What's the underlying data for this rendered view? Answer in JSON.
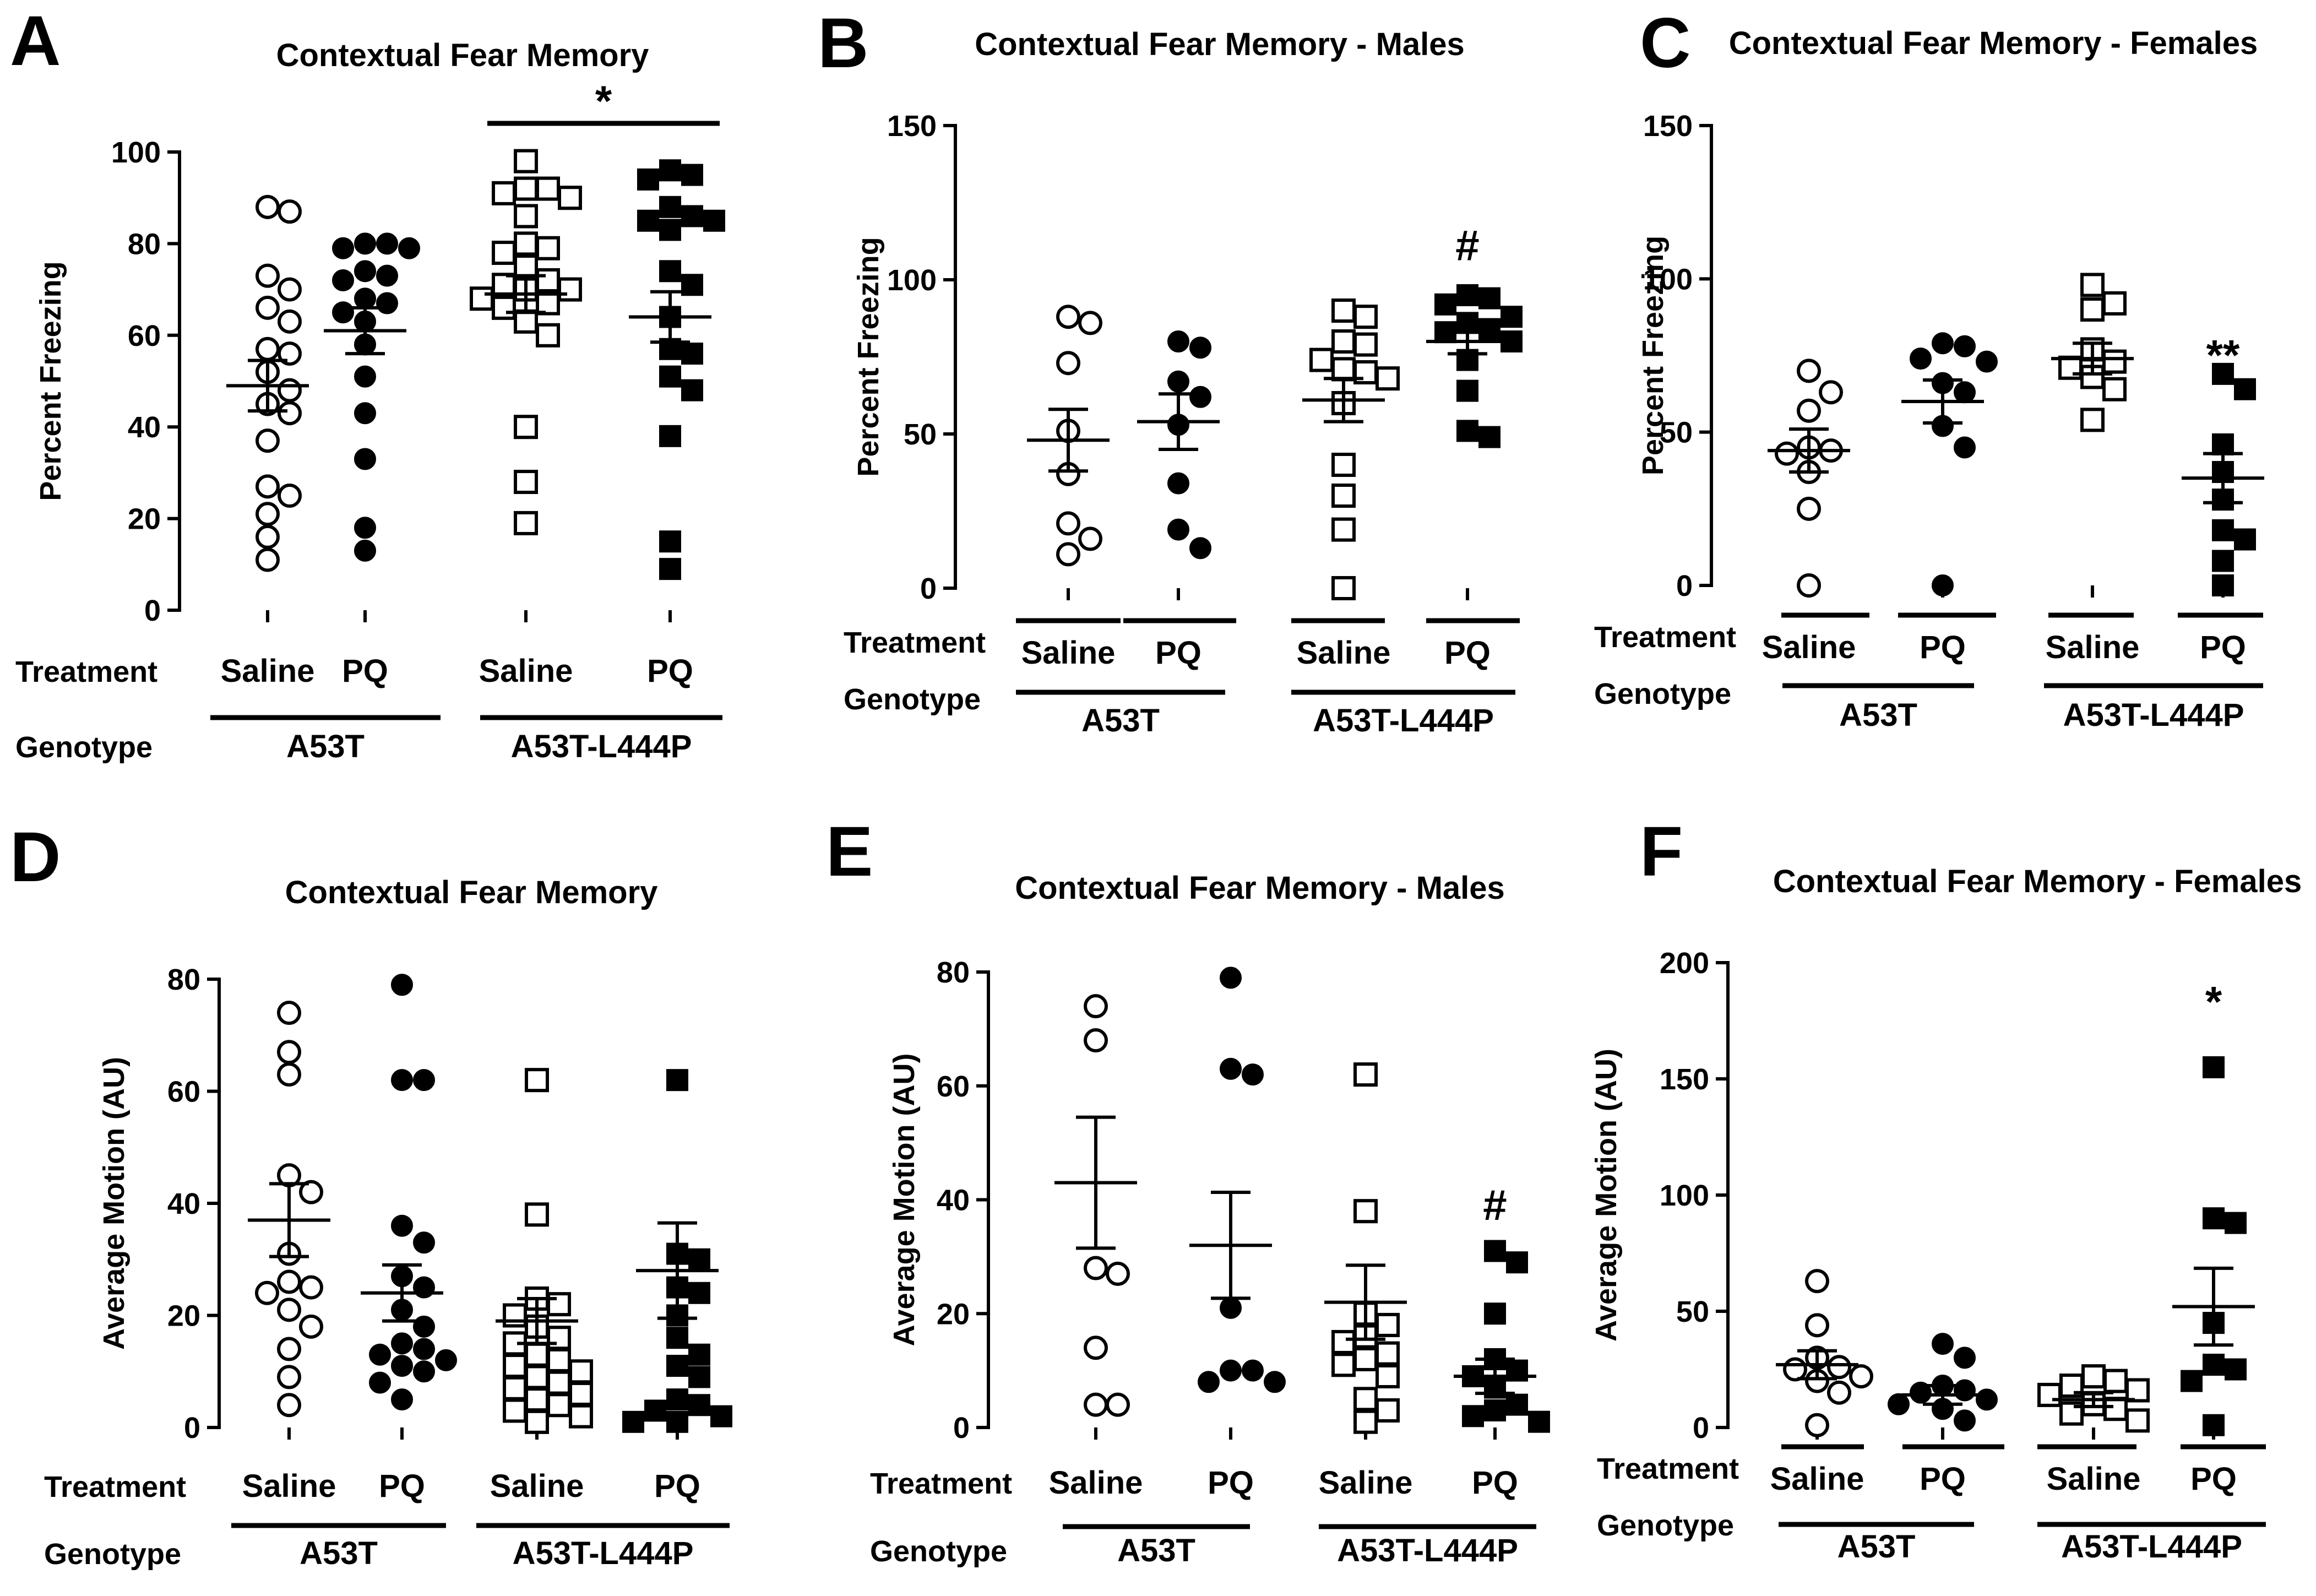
{
  "chart_data": [
    {
      "id": "A",
      "letter": "A",
      "type": "scatter",
      "title": "Contextual Fear Memory",
      "ylabel": "Percent Freezing",
      "ylim": [
        0,
        100
      ],
      "yticks": [
        0,
        20,
        40,
        60,
        80,
        100
      ],
      "row_labels": {
        "treatment": "Treatment",
        "genotype": "Genotype"
      },
      "groups": [
        {
          "treatment": "Saline",
          "genotype": "A53T",
          "marker": "circle-open",
          "mean": 49,
          "sem": 5.5,
          "values": [
            88,
            87,
            73,
            70,
            66,
            63,
            57,
            56,
            52,
            48,
            45,
            43,
            37,
            27,
            25,
            21,
            16,
            11
          ]
        },
        {
          "treatment": "PQ",
          "genotype": "A53T",
          "marker": "circle-filled",
          "mean": 61,
          "sem": 5,
          "values": [
            80,
            80,
            79,
            79,
            74,
            73,
            72,
            68,
            67,
            65,
            63,
            58,
            51,
            43,
            33,
            18,
            13
          ]
        },
        {
          "treatment": "Saline",
          "genotype": "A53T-L444P",
          "marker": "square-open",
          "mean": 69,
          "sem": 4,
          "values": [
            98,
            92,
            92,
            91,
            90,
            86,
            80,
            79,
            78,
            75,
            72,
            71,
            70,
            70,
            68,
            67,
            66,
            63,
            60,
            40,
            28,
            19
          ]
        },
        {
          "treatment": "PQ",
          "genotype": "A53T-L444P",
          "marker": "square-filled",
          "mean": 64,
          "sem": 5.5,
          "values": [
            96,
            95,
            94,
            88,
            86,
            85,
            85,
            83,
            74,
            71,
            64,
            57,
            56,
            51,
            48,
            38,
            15,
            9
          ]
        }
      ],
      "genotypes": [
        "A53T",
        "A53T-L444P"
      ],
      "annotations": [
        {
          "text": "*",
          "type": "bracket",
          "from_group": 2,
          "to_group": 3
        }
      ]
    },
    {
      "id": "B",
      "letter": "B",
      "type": "scatter",
      "title": "Contextual Fear Memory - Males",
      "ylabel": "Percent Freezing",
      "ylim": [
        0,
        150
      ],
      "yticks": [
        0,
        50,
        100,
        150
      ],
      "row_labels": {
        "treatment": "Treatment",
        "genotype": "Genotype"
      },
      "groups": [
        {
          "treatment": "Saline",
          "genotype": "A53T",
          "marker": "circle-open",
          "mean": 48,
          "sem": 10,
          "values": [
            88,
            86,
            73,
            51,
            37,
            21,
            16,
            11
          ]
        },
        {
          "treatment": "PQ",
          "genotype": "A53T",
          "marker": "circle-filled",
          "mean": 54,
          "sem": 9,
          "values": [
            80,
            78,
            67,
            62,
            53,
            34,
            19,
            13
          ]
        },
        {
          "treatment": "Saline",
          "genotype": "A53T-L444P",
          "marker": "square-open",
          "mean": 61,
          "sem": 7,
          "values": [
            90,
            88,
            80,
            79,
            74,
            71,
            70,
            68,
            60,
            40,
            30,
            19,
            0
          ]
        },
        {
          "treatment": "PQ",
          "genotype": "A53T-L444P",
          "marker": "square-filled",
          "mean": 80,
          "sem": 4,
          "values": [
            95,
            94,
            92,
            88,
            86,
            84,
            83,
            80,
            74,
            64,
            51,
            49
          ]
        }
      ],
      "genotypes": [
        "A53T",
        "A53T-L444P"
      ],
      "annotations": [
        {
          "text": "#",
          "type": "above",
          "group": 3,
          "value": 111
        }
      ]
    },
    {
      "id": "C",
      "letter": "C",
      "type": "scatter",
      "title": "Contextual Fear Memory - Females",
      "ylabel": "Percent Freezing",
      "ylim": [
        0,
        150
      ],
      "yticks": [
        0,
        50,
        100,
        150
      ],
      "row_labels": {
        "treatment": "Treatment",
        "genotype": "Genotype"
      },
      "groups": [
        {
          "treatment": "Saline",
          "genotype": "A53T",
          "marker": "circle-open",
          "mean": 44,
          "sem": 7,
          "values": [
            70,
            63,
            57,
            45,
            44,
            43,
            37,
            25,
            0
          ]
        },
        {
          "treatment": "PQ",
          "genotype": "A53T",
          "marker": "circle-filled",
          "mean": 60,
          "sem": 7,
          "values": [
            79,
            78,
            74,
            73,
            66,
            63,
            52,
            45,
            0
          ]
        },
        {
          "treatment": "Saline",
          "genotype": "A53T-L444P",
          "marker": "square-open",
          "mean": 74,
          "sem": 5,
          "values": [
            98,
            92,
            90,
            77,
            73,
            71,
            68,
            64,
            54
          ]
        },
        {
          "treatment": "PQ",
          "genotype": "A53T-L444P",
          "marker": "square-filled",
          "mean": 35,
          "sem": 8,
          "values": [
            69,
            64,
            46,
            37,
            28,
            18,
            15,
            8,
            0
          ]
        }
      ],
      "genotypes": [
        "A53T",
        "A53T-L444P"
      ],
      "annotations": [
        {
          "text": "**",
          "type": "above",
          "group": 3,
          "value": 75
        }
      ]
    },
    {
      "id": "D",
      "letter": "D",
      "type": "scatter",
      "title": "Contextual Fear Memory",
      "ylabel": "Average Motion (AU)",
      "ylim": [
        0,
        80
      ],
      "yticks": [
        0,
        20,
        40,
        60,
        80
      ],
      "row_labels": {
        "treatment": "Treatment",
        "genotype": "Genotype"
      },
      "groups": [
        {
          "treatment": "Saline",
          "genotype": "A53T",
          "marker": "circle-open",
          "mean": 37,
          "sem": 6.5,
          "values": [
            74,
            67,
            63,
            45,
            42,
            31,
            26,
            25,
            24,
            21,
            18,
            14,
            9,
            4
          ]
        },
        {
          "treatment": "PQ",
          "genotype": "A53T",
          "marker": "circle-filled",
          "mean": 24,
          "sem": 5,
          "values": [
            79,
            62,
            62,
            36,
            33,
            27,
            25,
            21,
            18,
            15,
            14,
            13,
            12,
            11,
            10,
            8,
            5
          ]
        },
        {
          "treatment": "Saline",
          "genotype": "A53T-L444P",
          "marker": "square-open",
          "mean": 19,
          "sem": 4,
          "values": [
            62,
            38,
            23,
            22,
            20,
            18,
            16,
            15,
            13,
            12,
            11,
            10,
            9,
            8,
            7,
            6,
            5,
            4,
            3,
            2,
            1
          ]
        },
        {
          "treatment": "PQ",
          "genotype": "A53T-L444P",
          "marker": "square-filled",
          "mean": 28,
          "sem": 8.5,
          "values": [
            62,
            31,
            30,
            25,
            24,
            20,
            16,
            13,
            11,
            9,
            5,
            4,
            3,
            2,
            1,
            1
          ]
        }
      ],
      "genotypes": [
        "A53T",
        "A53T-L444P"
      ],
      "annotations": []
    },
    {
      "id": "E",
      "letter": "E",
      "type": "scatter",
      "title": "Contextual Fear Memory - Males",
      "ylabel": "Average Motion (AU)",
      "ylim": [
        0,
        80
      ],
      "yticks": [
        0,
        20,
        40,
        60,
        80
      ],
      "row_labels": {
        "treatment": "Treatment",
        "genotype": "Genotype"
      },
      "groups": [
        {
          "treatment": "Saline",
          "genotype": "A53T",
          "marker": "circle-open",
          "mean": 43,
          "sem": 11.5,
          "values": [
            74,
            68,
            28,
            27,
            14,
            4,
            4
          ]
        },
        {
          "treatment": "PQ",
          "genotype": "A53T",
          "marker": "circle-filled",
          "mean": 32,
          "sem": 9.3,
          "values": [
            79,
            63,
            62,
            21,
            10,
            10,
            8,
            8
          ]
        },
        {
          "treatment": "Saline",
          "genotype": "A53T-L444P",
          "marker": "square-open",
          "mean": 22,
          "sem": 6.5,
          "values": [
            62,
            38,
            20,
            18,
            16,
            15,
            13,
            12,
            11,
            9,
            5,
            3,
            1
          ]
        },
        {
          "treatment": "PQ",
          "genotype": "A53T-L444P",
          "marker": "square-filled",
          "mean": 9,
          "sem": 3,
          "values": [
            31,
            29,
            20,
            12,
            10,
            9,
            7,
            4,
            3,
            2,
            1
          ]
        }
      ],
      "genotypes": [
        "A53T",
        "A53T-L444P"
      ],
      "annotations": [
        {
          "text": "#",
          "type": "above",
          "group": 3,
          "value": 39
        }
      ]
    },
    {
      "id": "F",
      "letter": "F",
      "type": "scatter",
      "title": "Contextual Fear Memory - Females",
      "ylabel": "Average Motion (AU)",
      "ylim": [
        0,
        200
      ],
      "yticks": [
        0,
        50,
        100,
        150,
        200
      ],
      "row_labels": {
        "treatment": "Treatment",
        "genotype": "Genotype"
      },
      "groups": [
        {
          "treatment": "Saline",
          "genotype": "A53T",
          "marker": "circle-open",
          "mean": 27,
          "sem": 6,
          "values": [
            63,
            44,
            30,
            26,
            25,
            22,
            20,
            15,
            1
          ]
        },
        {
          "treatment": "PQ",
          "genotype": "A53T",
          "marker": "circle-filled",
          "mean": 14,
          "sem": 4,
          "values": [
            36,
            30,
            18,
            16,
            15,
            12,
            10,
            8,
            3
          ]
        },
        {
          "treatment": "Saline",
          "genotype": "A53T-L444P",
          "marker": "square-open",
          "mean": 12,
          "sem": 3,
          "values": [
            22,
            20,
            18,
            16,
            14,
            10,
            8,
            6,
            3
          ]
        },
        {
          "treatment": "PQ",
          "genotype": "A53T-L444P",
          "marker": "square-filled",
          "mean": 52,
          "sem": 16.5,
          "values": [
            155,
            90,
            88,
            45,
            27,
            25,
            20,
            1
          ]
        }
      ],
      "genotypes": [
        "A53T",
        "A53T-L444P"
      ],
      "annotations": [
        {
          "text": "*",
          "type": "above",
          "group": 3,
          "value": 183
        }
      ]
    }
  ]
}
